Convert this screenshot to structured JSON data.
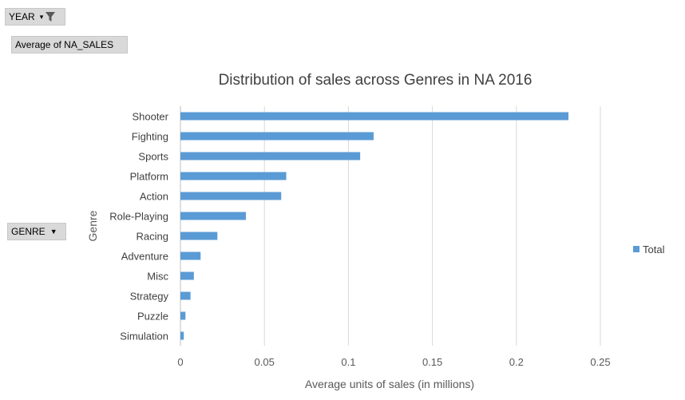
{
  "pivot_fields": {
    "year_label": "YEAR",
    "measure_label": "Average of NA_SALES",
    "genre_label": "GENRE"
  },
  "colors": {
    "bar": "#5b9bd5",
    "grid": "#d9d9d9"
  },
  "chart_data": {
    "type": "bar",
    "orientation": "horizontal",
    "title": "Distribution of sales across Genres in NA 2016",
    "xlabel": "Average units of sales (in millions)",
    "ylabel": "Genre",
    "categories": [
      "Shooter",
      "Fighting",
      "Sports",
      "Platform",
      "Action",
      "Role-Playing",
      "Racing",
      "Adventure",
      "Misc",
      "Strategy",
      "Puzzle",
      "Simulation"
    ],
    "series": [
      {
        "name": "Total",
        "values": [
          0.231,
          0.115,
          0.107,
          0.063,
          0.06,
          0.039,
          0.022,
          0.012,
          0.008,
          0.006,
          0.003,
          0.002
        ]
      }
    ],
    "xlim": [
      0,
      0.25
    ],
    "xticks": [
      "0",
      "0.05",
      "0.1",
      "0.15",
      "0.2",
      "0.25"
    ],
    "grid": true,
    "legend_position": "right"
  }
}
